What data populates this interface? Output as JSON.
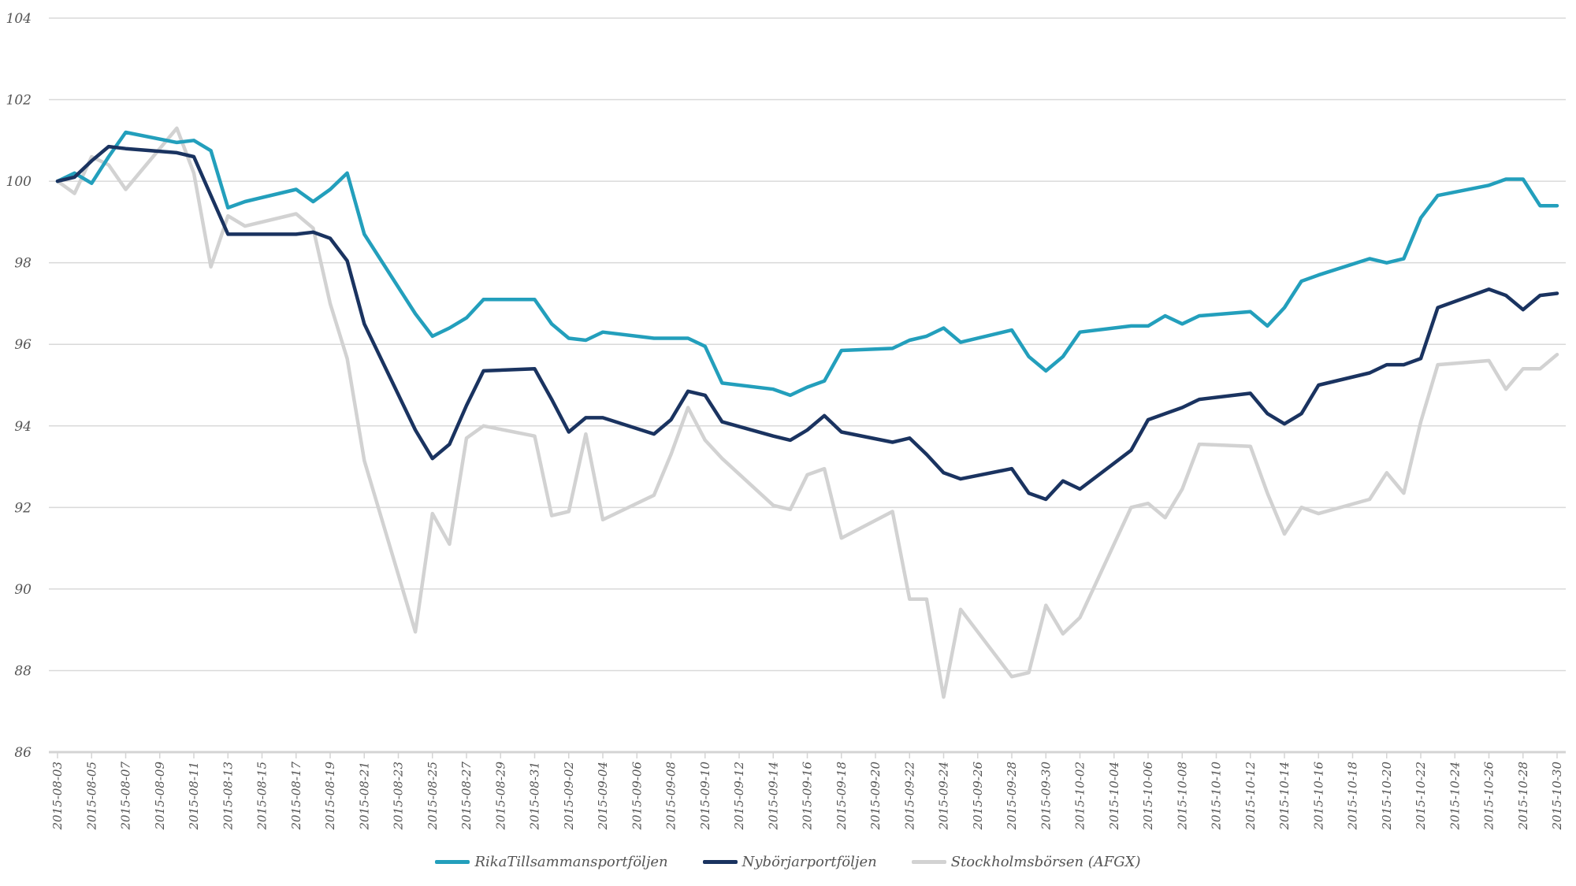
{
  "chart_data": {
    "type": "line",
    "title": "",
    "xlabel": "",
    "ylabel": "",
    "ylim": [
      86,
      104
    ],
    "yticks": [
      "86",
      "88",
      "90",
      "92",
      "94",
      "96",
      "98",
      "100",
      "102",
      "104"
    ],
    "grid": true,
    "legend_position": "bottom",
    "x_start": "2015-08-03",
    "x_end": "2015-10-30",
    "x_tick_labels": [
      "2015-08-03",
      "2015-08-05",
      "2015-08-07",
      "2015-08-09",
      "2015-08-11",
      "2015-08-13",
      "2015-08-15",
      "2015-08-17",
      "2015-08-19",
      "2015-08-21",
      "2015-08-23",
      "2015-08-25",
      "2015-08-27",
      "2015-08-29",
      "2015-08-31",
      "2015-09-02",
      "2015-09-04",
      "2015-09-06",
      "2015-09-08",
      "2015-09-10",
      "2015-09-12",
      "2015-09-14",
      "2015-09-16",
      "2015-09-18",
      "2015-09-20",
      "2015-09-22",
      "2015-09-24",
      "2015-09-26",
      "2015-09-28",
      "2015-09-30",
      "2015-10-02",
      "2015-10-04",
      "2015-10-06",
      "2015-10-08",
      "2015-10-10",
      "2015-10-12",
      "2015-10-14",
      "2015-10-16",
      "2015-10-18",
      "2015-10-20",
      "2015-10-22",
      "2015-10-24",
      "2015-10-26",
      "2015-10-28",
      "2015-10-30"
    ],
    "x": [
      "2015-08-03",
      "2015-08-04",
      "2015-08-05",
      "2015-08-06",
      "2015-08-07",
      "2015-08-10",
      "2015-08-11",
      "2015-08-12",
      "2015-08-13",
      "2015-08-14",
      "2015-08-17",
      "2015-08-18",
      "2015-08-19",
      "2015-08-20",
      "2015-08-21",
      "2015-08-24",
      "2015-08-25",
      "2015-08-26",
      "2015-08-27",
      "2015-08-28",
      "2015-08-31",
      "2015-09-01",
      "2015-09-02",
      "2015-09-03",
      "2015-09-04",
      "2015-09-07",
      "2015-09-08",
      "2015-09-09",
      "2015-09-10",
      "2015-09-11",
      "2015-09-14",
      "2015-09-15",
      "2015-09-16",
      "2015-09-17",
      "2015-09-18",
      "2015-09-21",
      "2015-09-22",
      "2015-09-23",
      "2015-09-24",
      "2015-09-25",
      "2015-09-28",
      "2015-09-29",
      "2015-09-30",
      "2015-10-01",
      "2015-10-02",
      "2015-10-05",
      "2015-10-06",
      "2015-10-07",
      "2015-10-08",
      "2015-10-09",
      "2015-10-12",
      "2015-10-13",
      "2015-10-14",
      "2015-10-15",
      "2015-10-16",
      "2015-10-19",
      "2015-10-20",
      "2015-10-21",
      "2015-10-22",
      "2015-10-23",
      "2015-10-26",
      "2015-10-27",
      "2015-10-28",
      "2015-10-29",
      "2015-10-30"
    ],
    "series": [
      {
        "name": "RikaTillsammansportföljen",
        "color": "#239fbc",
        "values": [
          100,
          100.2,
          99.95,
          100.6,
          101.2,
          100.95,
          101.0,
          100.75,
          99.35,
          99.5,
          99.8,
          99.5,
          99.8,
          100.2,
          98.7,
          96.75,
          96.2,
          96.4,
          96.65,
          97.1,
          97.1,
          96.5,
          96.15,
          96.1,
          96.3,
          96.15,
          96.15,
          96.15,
          95.95,
          95.05,
          94.9,
          94.75,
          94.95,
          95.1,
          95.85,
          95.9,
          96.1,
          96.2,
          96.4,
          96.05,
          96.35,
          95.7,
          95.35,
          95.7,
          96.3,
          96.45,
          96.45,
          96.7,
          96.5,
          96.7,
          96.8,
          96.45,
          96.9,
          97.55,
          97.7,
          98.1,
          98.0,
          98.1,
          99.1,
          99.65,
          99.9,
          100.05,
          100.05,
          99.4,
          99.4
        ]
      },
      {
        "name": "Nybörjarportföljen",
        "color": "#1a3360",
        "values": [
          100,
          100.1,
          100.5,
          100.85,
          100.8,
          100.7,
          100.6,
          99.65,
          98.7,
          98.7,
          98.7,
          98.75,
          98.6,
          98.05,
          96.5,
          93.9,
          93.2,
          93.55,
          94.5,
          95.35,
          95.4,
          94.65,
          93.85,
          94.2,
          94.2,
          93.8,
          94.15,
          94.85,
          94.75,
          94.1,
          93.75,
          93.65,
          93.9,
          94.25,
          93.85,
          93.6,
          93.7,
          93.3,
          92.85,
          92.7,
          92.95,
          92.35,
          92.2,
          92.65,
          92.45,
          93.4,
          94.15,
          94.3,
          94.45,
          94.65,
          94.8,
          94.3,
          94.05,
          94.3,
          95.0,
          95.3,
          95.5,
          95.5,
          95.65,
          96.9,
          97.35,
          97.2,
          96.85,
          97.2,
          97.25
        ]
      },
      {
        "name": "Stockholmsbörsen (AFGX)",
        "color": "#d2d2d2",
        "values": [
          100,
          99.7,
          100.6,
          100.4,
          99.8,
          101.3,
          100.2,
          97.9,
          99.15,
          98.9,
          99.2,
          98.85,
          97.0,
          95.65,
          93.15,
          88.95,
          91.85,
          91.1,
          93.7,
          94.0,
          93.75,
          91.8,
          91.9,
          93.8,
          91.7,
          92.3,
          93.3,
          94.45,
          93.65,
          93.2,
          92.05,
          91.95,
          92.8,
          92.95,
          91.25,
          91.9,
          89.75,
          89.75,
          87.35,
          89.5,
          87.85,
          87.95,
          89.6,
          88.9,
          89.3,
          92.0,
          92.1,
          91.75,
          92.45,
          93.55,
          93.5,
          92.35,
          91.35,
          92.0,
          91.85,
          92.2,
          92.85,
          92.35,
          94.1,
          95.5,
          95.6,
          94.9,
          95.4,
          95.4,
          95.75
        ]
      }
    ]
  }
}
